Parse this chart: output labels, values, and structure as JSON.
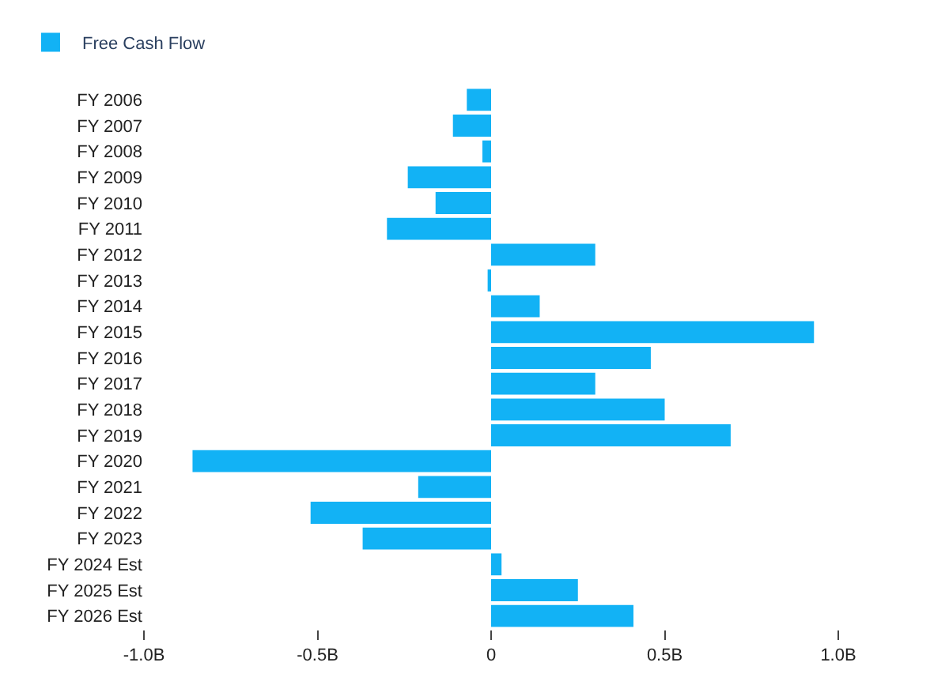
{
  "chart_data": {
    "type": "bar",
    "orientation": "horizontal",
    "categories": [
      "FY 2006",
      "FY 2007",
      "FY 2008",
      "FY 2009",
      "FY 2010",
      "FY 2011",
      "FY 2012",
      "FY 2013",
      "FY 2014",
      "FY 2015",
      "FY 2016",
      "FY 2017",
      "FY 2018",
      "FY 2019",
      "FY 2020",
      "FY 2021",
      "FY 2022",
      "FY 2023",
      "FY 2024 Est",
      "FY 2025 Est",
      "FY 2026 Est"
    ],
    "series": [
      {
        "name": "Free Cash Flow",
        "color": "#12b2f5",
        "values": [
          -0.07,
          -0.11,
          -0.025,
          -0.24,
          -0.16,
          -0.3,
          0.3,
          -0.01,
          0.14,
          0.93,
          0.46,
          0.3,
          0.5,
          0.69,
          -0.86,
          -0.21,
          -0.52,
          -0.37,
          0.03,
          0.25,
          0.41
        ]
      }
    ],
    "xlim": [
      -1.0,
      1.0
    ],
    "xticks": [
      {
        "value": -1.0,
        "label": "-1.0B"
      },
      {
        "value": -0.5,
        "label": "-0.5B"
      },
      0,
      {
        "value": 0.5,
        "label": "0.5B"
      },
      {
        "value": 1.0,
        "label": "1.0B"
      }
    ],
    "legend": "top left"
  }
}
